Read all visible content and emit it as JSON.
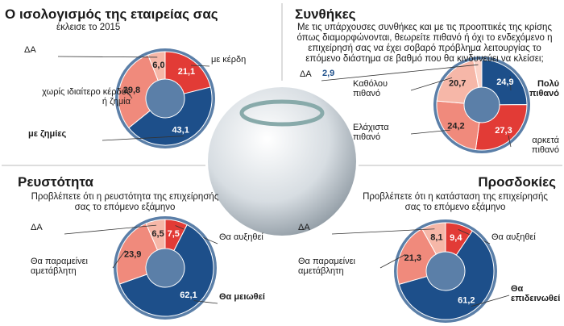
{
  "chart_data": [
    {
      "type": "pie",
      "donut": true,
      "title": "Ο ισολογισμός της εταιρείας σας",
      "subtitle": "έκλεισε το 2015",
      "categories": [
        "με κέρδη",
        "με ζημίες",
        "χωρίς ιδιαίτερο κέρδος ή ζημία",
        "ΔΑ"
      ],
      "values": [
        21.1,
        43.1,
        29.8,
        6.0
      ],
      "value_labels": [
        "21,1",
        "43,1",
        "29,8",
        "6,0"
      ],
      "colors": [
        "#e23b36",
        "#1d4f8a",
        "#f08a7c",
        "#f6b7a8"
      ]
    },
    {
      "type": "pie",
      "donut": true,
      "title": "Συνθήκες",
      "subtitle": "Με τις υπάρχουσες συνθήκες και με τις προοπτικές της κρίσης όπως διαμορφώνονται, θεωρείτε πιθανό ή όχι το ενδεχόμενο η επιχείρησή σας να έχει σοβαρό πρόβλημα λειτουργίας το επόμενο διάστημα σε βαθμό που θα κινδυνεύει να κλείσει;",
      "categories": [
        "Πολύ πιθανό",
        "αρκετά πιθανό",
        "Ελάχιστα πιθανό",
        "Καθόλου πιθανό",
        "ΔΑ"
      ],
      "values": [
        24.9,
        27.3,
        24.2,
        20.7,
        2.9
      ],
      "value_labels": [
        "24,9",
        "27,3",
        "24,2",
        "20,7",
        "2,9"
      ],
      "colors": [
        "#1d4f8a",
        "#e23b36",
        "#f08a7c",
        "#f6b7a8",
        "#fbd3c8"
      ]
    },
    {
      "type": "pie",
      "donut": true,
      "title": "Ρευστότητα",
      "subtitle": "Προβλέπετε ότι η ρευστότητα της επιχείρησής σας το επόμενο εξάμηνο",
      "categories": [
        "Θα αυξηθεί",
        "Θα μειωθεί",
        "Θα παραμείνει αμετάβλητη",
        "ΔΑ"
      ],
      "values": [
        7.5,
        62.1,
        23.9,
        6.5
      ],
      "value_labels": [
        "7,5",
        "62,1",
        "23,9",
        "6,5"
      ],
      "colors": [
        "#e23b36",
        "#1d4f8a",
        "#f08a7c",
        "#f6b7a8"
      ]
    },
    {
      "type": "pie",
      "donut": true,
      "title": "Προσδοκίες",
      "subtitle": "Προβλέπετε ότι η κατάσταση της επιχείρησής σας το επόμενο εξάμηνο",
      "categories": [
        "Θα αυξηθεί",
        "Θα επιδεινωθεί",
        "Θα παραμείνει αμετάβλητη",
        "ΔΑ"
      ],
      "values": [
        9.4,
        61.2,
        21.3,
        8.1
      ],
      "value_labels": [
        "9,4",
        "61,2",
        "21,3",
        "8,1"
      ],
      "colors": [
        "#e23b36",
        "#1d4f8a",
        "#f08a7c",
        "#f6b7a8"
      ]
    }
  ]
}
